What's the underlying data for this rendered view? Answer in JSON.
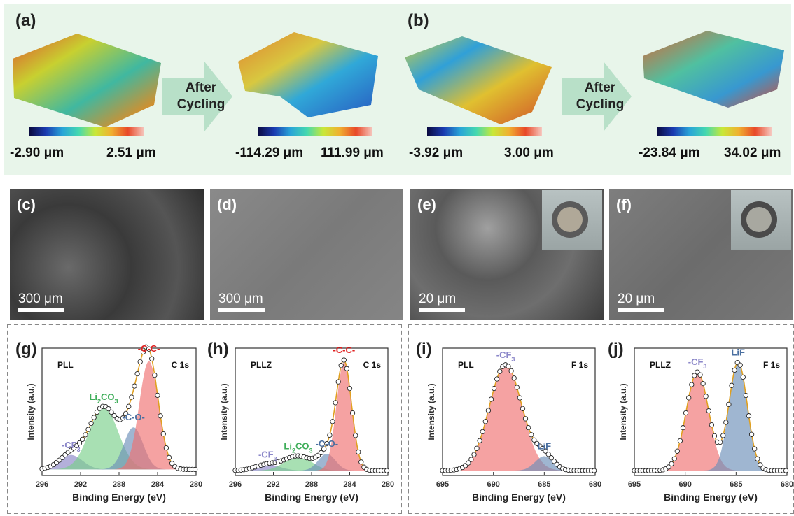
{
  "panel_labels": {
    "a": "(a)",
    "b": "(b)",
    "c": "(c)",
    "d": "(d)",
    "e": "(e)",
    "f": "(f)",
    "g": "(g)",
    "h": "(h)",
    "i": "(i)",
    "j": "(j)"
  },
  "arrow_text": {
    "line1": "After",
    "line2": "Cycling"
  },
  "colorbars": [
    {
      "min": "-2.90 μm",
      "max": "2.51 μm"
    },
    {
      "min": "-114.29 μm",
      "max": "111.99 μm"
    },
    {
      "min": "-3.92 μm",
      "max": "3.00 μm"
    },
    {
      "min": "-23.84 μm",
      "max": "34.02 μm"
    }
  ],
  "sem_scales": [
    "300 μm",
    "300 μm",
    "20 μm",
    "20 μm"
  ],
  "chart_data": [
    {
      "type": "line",
      "title": "",
      "sample": "PLL",
      "region": "C 1s",
      "xlabel": "Binding Energy (eV)",
      "ylabel": "Intensity (a.u.)",
      "xlim": [
        296,
        280
      ],
      "xticks": [
        "296",
        "292",
        "288",
        "284",
        "280"
      ],
      "peaks": [
        {
          "name": "-CF3",
          "center": 293.0,
          "height": 0.12,
          "width": 1.2,
          "color": "#8a86c8"
        },
        {
          "name": "Li2CO3",
          "center": 289.6,
          "height": 0.52,
          "width": 1.5,
          "color": "#7acf8a"
        },
        {
          "name": "-C-O-",
          "center": 286.5,
          "height": 0.35,
          "width": 1.0,
          "color": "#6c8fb8"
        },
        {
          "name": "-C-C-",
          "center": 284.9,
          "height": 0.9,
          "width": 1.0,
          "color": "#f07070"
        }
      ],
      "baseline": 0.05
    },
    {
      "type": "line",
      "title": "",
      "sample": "PLLZ",
      "region": "C 1s",
      "xlabel": "Binding Energy (eV)",
      "ylabel": "Intensity (a.u.)",
      "xlim": [
        296,
        280
      ],
      "xticks": [
        "296",
        "292",
        "288",
        "284",
        "280"
      ],
      "peaks": [
        {
          "name": "-CF3",
          "center": 292.6,
          "height": 0.05,
          "width": 1.3,
          "color": "#8a86c8"
        },
        {
          "name": "Li2CO3",
          "center": 289.4,
          "height": 0.12,
          "width": 1.4,
          "color": "#7acf8a"
        },
        {
          "name": "-C-O-",
          "center": 286.4,
          "height": 0.14,
          "width": 0.9,
          "color": "#6c8fb8"
        },
        {
          "name": "-C-C-",
          "center": 284.6,
          "height": 0.9,
          "width": 0.8,
          "color": "#f07070"
        }
      ],
      "baseline": 0.04
    },
    {
      "type": "line",
      "title": "",
      "sample": "PLL",
      "region": "F 1s",
      "xlabel": "Binding Energy (eV)",
      "ylabel": "Intensity (a.u.)",
      "xlim": [
        695,
        680
      ],
      "xticks": [
        "695",
        "690",
        "685",
        "680"
      ],
      "peaks": [
        {
          "name": "-CF3",
          "center": 688.8,
          "height": 0.88,
          "width": 1.6,
          "color": "#f07070"
        },
        {
          "name": "LiF",
          "center": 685.0,
          "height": 0.12,
          "width": 0.9,
          "color": "#6c8fb8"
        }
      ],
      "baseline": 0.04
    },
    {
      "type": "line",
      "title": "",
      "sample": "PLLZ",
      "region": "F 1s",
      "xlabel": "Binding Energy (eV)",
      "ylabel": "Intensity (a.u.)",
      "xlim": [
        695,
        680
      ],
      "xticks": [
        "695",
        "690",
        "685",
        "680"
      ],
      "peaks": [
        {
          "name": "-CF3",
          "center": 688.8,
          "height": 0.82,
          "width": 1.1,
          "color": "#f07070"
        },
        {
          "name": "LiF",
          "center": 684.8,
          "height": 0.9,
          "width": 0.9,
          "color": "#6c8fb8"
        }
      ],
      "baseline": 0.04
    }
  ]
}
